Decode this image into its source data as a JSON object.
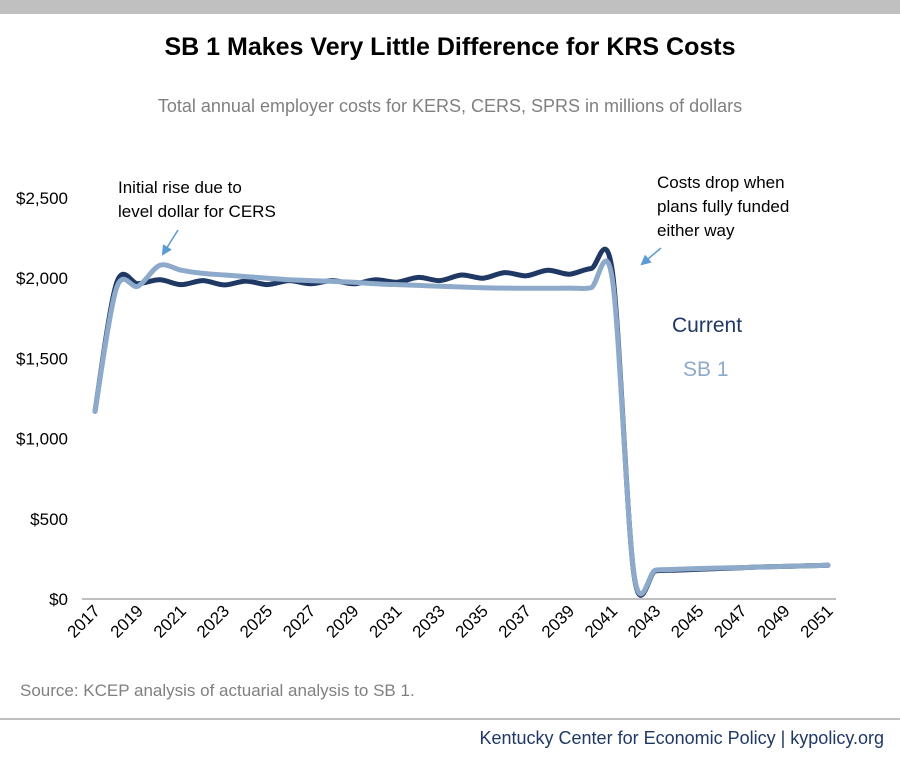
{
  "header": {
    "title": "SB 1 Makes Very Little Difference for KRS Costs",
    "subtitle": "Total annual employer costs for KERS, CERS, SPRS in millions of dollars"
  },
  "source": "Source: KCEP analysis of actuarial analysis to SB 1.",
  "footer": "Kentucky Center for Economic Policy | kypolicy.org",
  "colors": {
    "current": "#1f3864",
    "sb1": "#8eaacb",
    "axis": "#bfbfbf",
    "annotation_arrow": "#5b9bd5"
  },
  "chart_data": {
    "type": "line",
    "title": "SB 1 Makes Very Little Difference for KRS Costs",
    "subtitle": "Total annual employer costs for KERS, CERS, SPRS in millions of dollars",
    "ylim": [
      0,
      2500
    ],
    "yticks": [
      0,
      500,
      1000,
      1500,
      2000,
      2500
    ],
    "ytick_labels": [
      "$0",
      "$500",
      "$1,000",
      "$1,500",
      "$2,000",
      "$2,500"
    ],
    "x": [
      2017,
      2018,
      2019,
      2020,
      2021,
      2022,
      2023,
      2024,
      2025,
      2026,
      2027,
      2028,
      2029,
      2030,
      2031,
      2032,
      2033,
      2034,
      2035,
      2036,
      2037,
      2038,
      2039,
      2040,
      2041,
      2042,
      2043,
      2044,
      2045,
      2046,
      2047,
      2048,
      2049,
      2050,
      2051
    ],
    "xtick_labels": [
      "2017",
      "2019",
      "2021",
      "2023",
      "2025",
      "2027",
      "2029",
      "2031",
      "2033",
      "2035",
      "2037",
      "2039",
      "2041",
      "2043",
      "2045",
      "2047",
      "2049",
      "2051"
    ],
    "grid": false,
    "series": [
      {
        "name": "Current",
        "values": [
          1170,
          1970,
          1965,
          1990,
          1960,
          1985,
          1958,
          1982,
          1960,
          1985,
          1965,
          1985,
          1965,
          1990,
          1975,
          2005,
          1985,
          2020,
          2000,
          2035,
          2015,
          2050,
          2025,
          2060,
          2040,
          150,
          175,
          180,
          185,
          190,
          195,
          200,
          203,
          207,
          210
        ]
      },
      {
        "name": "SB 1",
        "values": [
          1170,
          1940,
          1950,
          2080,
          2050,
          2030,
          2020,
          2010,
          2000,
          1990,
          1985,
          1980,
          1975,
          1965,
          1960,
          1955,
          1950,
          1945,
          1940,
          1938,
          1937,
          1937,
          1938,
          1940,
          1990,
          155,
          180,
          185,
          190,
          193,
          196,
          200,
          203,
          207,
          210
        ]
      }
    ],
    "annotations": [
      "Initial rise due to level dollar for CERS",
      "Costs drop when plans fully funded either way"
    ]
  }
}
